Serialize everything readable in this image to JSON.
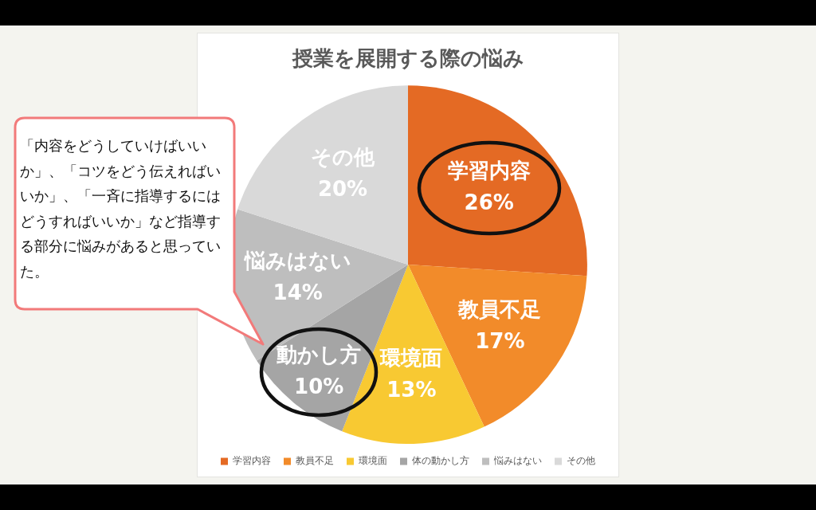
{
  "chart_data": {
    "type": "pie",
    "title": "授業を展開する際の悩み",
    "categories": [
      "学習内容",
      "教員不足",
      "環境面",
      "体の動かし方",
      "悩みはない",
      "その他"
    ],
    "values": [
      26,
      17,
      13,
      10,
      14,
      20
    ],
    "colors": [
      "#e46a24",
      "#f28b2a",
      "#f8c932",
      "#a5a5a5",
      "#bebebe",
      "#d9d9d9"
    ],
    "value_labels": [
      "学習内容\n26%",
      "教員不足\n17%",
      "環境面\n13%",
      "動かし方\n10%",
      "悩みはない\n14%",
      "その他\n20%"
    ],
    "legend": "bottom",
    "annotations": [
      "「内容をどうしていけばいいか」、「コツをどう伝えればいいか」、「一斉に指導するにはどうすればいいか」など指導する部分に悩みがあると思っていた。"
    ]
  }
}
